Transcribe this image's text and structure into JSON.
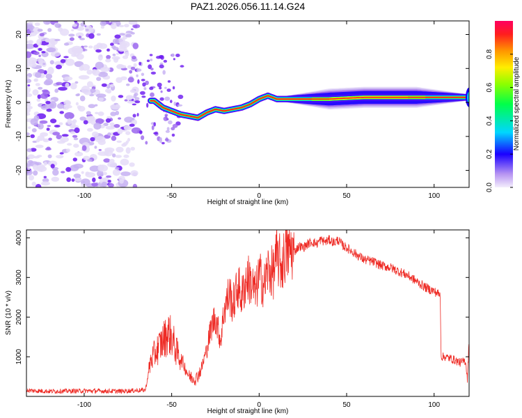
{
  "title": "PAZ1.2026.056.11.14.G24",
  "colors": {
    "snr_line": "#ee2a24",
    "palette": [
      "#e5dcf8",
      "#c6b0f2",
      "#9b66ee",
      "#6a16f0",
      "#1a00ff",
      "#00d2ff",
      "#00ff6a",
      "#8cff00",
      "#fff200",
      "#ff9a00",
      "#ff2020",
      "#ff0058"
    ]
  },
  "chart_data": [
    {
      "type": "heatmap",
      "id": "spectrogram",
      "title": "PAZ1.2026.056.11.14.G24",
      "xlabel": "Height of straight line (km)",
      "ylabel": "Frequency (Hz)",
      "xlim": [
        -133,
        120
      ],
      "ylim": [
        -25,
        24
      ],
      "xticks": [
        -100,
        -50,
        0,
        50,
        100
      ],
      "yticks": [
        -20,
        -10,
        0,
        10,
        20
      ],
      "xtick_labels": [
        "-100",
        "-50",
        "0",
        "50",
        "100"
      ],
      "ytick_labels": [
        "-20",
        "-10",
        "0",
        "10",
        "20"
      ],
      "colorbar": {
        "label": "Normalized spectral amplitude",
        "range": [
          0,
          1
        ],
        "ticks": [
          0.0,
          0.2,
          0.4,
          0.6,
          0.8
        ],
        "tick_labels": [
          "0.0",
          "0.2",
          "0.4",
          "0.6",
          "0.8"
        ]
      },
      "ridge": {
        "x": [
          -60,
          -55,
          -50,
          -45,
          -40,
          -35,
          -30,
          -25,
          -20,
          -15,
          -10,
          -5,
          0,
          5,
          10,
          20,
          40,
          60,
          80,
          100,
          120
        ],
        "y": [
          0.5,
          -1.5,
          -2.5,
          -3.5,
          -4.0,
          -4.5,
          -3.0,
          -2.0,
          -2.5,
          -2.0,
          -1.5,
          -0.5,
          1.0,
          2.0,
          1.0,
          1.0,
          1.0,
          1.5,
          1.5,
          1.5,
          1.5
        ]
      },
      "noise_region_x": [
        -133,
        -70
      ]
    },
    {
      "type": "line",
      "id": "snr",
      "xlabel": "Height of straight line (km)",
      "ylabel": "SNR (10 * v/v)",
      "xlim": [
        -133,
        120
      ],
      "ylim": [
        0,
        4200
      ],
      "xticks": [
        -100,
        -50,
        0,
        50,
        100
      ],
      "yticks": [
        1000,
        2000,
        3000,
        4000
      ],
      "xtick_labels": [
        "-100",
        "-50",
        "0",
        "50",
        "100"
      ],
      "ytick_labels": [
        "1000",
        "2000",
        "3000",
        "4000"
      ],
      "series": [
        {
          "name": "SNR",
          "x": [
            -133,
            -120,
            -100,
            -80,
            -65,
            -62,
            -58,
            -55,
            -52,
            -50,
            -47,
            -44,
            -42,
            -40,
            -36,
            -33,
            -30,
            -27,
            -25,
            -22,
            -20,
            -17,
            -15,
            -12,
            -10,
            -7,
            -5,
            -2,
            0,
            3,
            5,
            8,
            10,
            13,
            15,
            18,
            20,
            23,
            25,
            28,
            30,
            33,
            35,
            38,
            40,
            43,
            45,
            48,
            50,
            55,
            60,
            65,
            70,
            75,
            80,
            85,
            90,
            95,
            100,
            102,
            103.5,
            104,
            106,
            110,
            115,
            118,
            119,
            120
          ],
          "y": [
            150,
            130,
            140,
            130,
            160,
            900,
            1200,
            1400,
            1600,
            1500,
            1100,
            900,
            700,
            500,
            450,
            700,
            1200,
            1800,
            2000,
            1400,
            2200,
            2600,
            2300,
            2800,
            2500,
            3000,
            2900,
            2600,
            3050,
            2800,
            3200,
            3100,
            3500,
            3300,
            3600,
            3700,
            3650,
            3800,
            3750,
            3850,
            3900,
            3850,
            3950,
            3900,
            3950,
            3880,
            3950,
            3800,
            3750,
            3600,
            3450,
            3400,
            3300,
            3250,
            3150,
            3050,
            2900,
            2750,
            2650,
            2600,
            2550,
            1000,
            1000,
            950,
            850,
            900,
            450,
            1400
          ]
        }
      ]
    }
  ]
}
